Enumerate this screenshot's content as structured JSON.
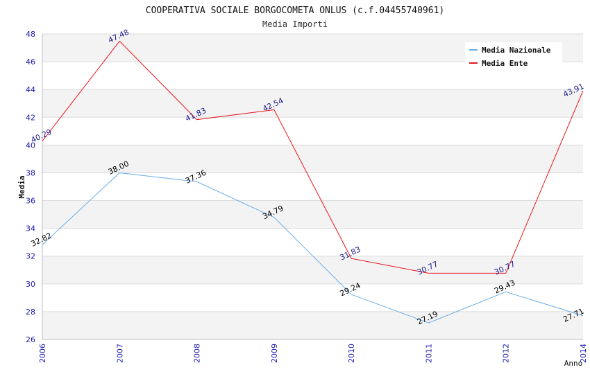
{
  "chart_data": {
    "type": "line",
    "title": "COOPERATIVA SOCIALE BORGOCOMETA ONLUS (c.f.04455740961)",
    "subtitle": "Media Importi",
    "xlabel": "Anno",
    "ylabel": "Media",
    "x": [
      "2006",
      "2007",
      "2008",
      "2009",
      "2010",
      "2011",
      "2012",
      "2014"
    ],
    "ylim": [
      26,
      48
    ],
    "yticks": [
      "26",
      "28",
      "30",
      "32",
      "34",
      "36",
      "38",
      "40",
      "42",
      "44",
      "46",
      "48"
    ],
    "grid": true,
    "legend_position": "top-right",
    "series": [
      {
        "name": "Media Nazionale",
        "color": "#6aaee8",
        "label_color": "#000000",
        "values": [
          32.82,
          38.0,
          37.36,
          34.79,
          29.24,
          27.19,
          29.43,
          27.71
        ],
        "labels": [
          "32.82",
          "38.00",
          "37.36",
          "34.79",
          "29.24",
          "27.19",
          "29.43",
          "27.71"
        ]
      },
      {
        "name": "Media Ente",
        "color": "#e8141c",
        "label_color": "#1a1a8c",
        "values": [
          40.29,
          47.48,
          41.83,
          42.54,
          31.83,
          30.77,
          30.77,
          43.91
        ],
        "labels": [
          "40.29",
          "47.48",
          "41.83",
          "42.54",
          "31.83",
          "30.77",
          "30.77",
          "43.91"
        ]
      }
    ],
    "colors": {
      "band": "#f3f3f3",
      "gridline": "#dcdcdc",
      "axis": "#bdbdbd",
      "tick_label": "#1a1ab0",
      "title": "#111111"
    }
  }
}
